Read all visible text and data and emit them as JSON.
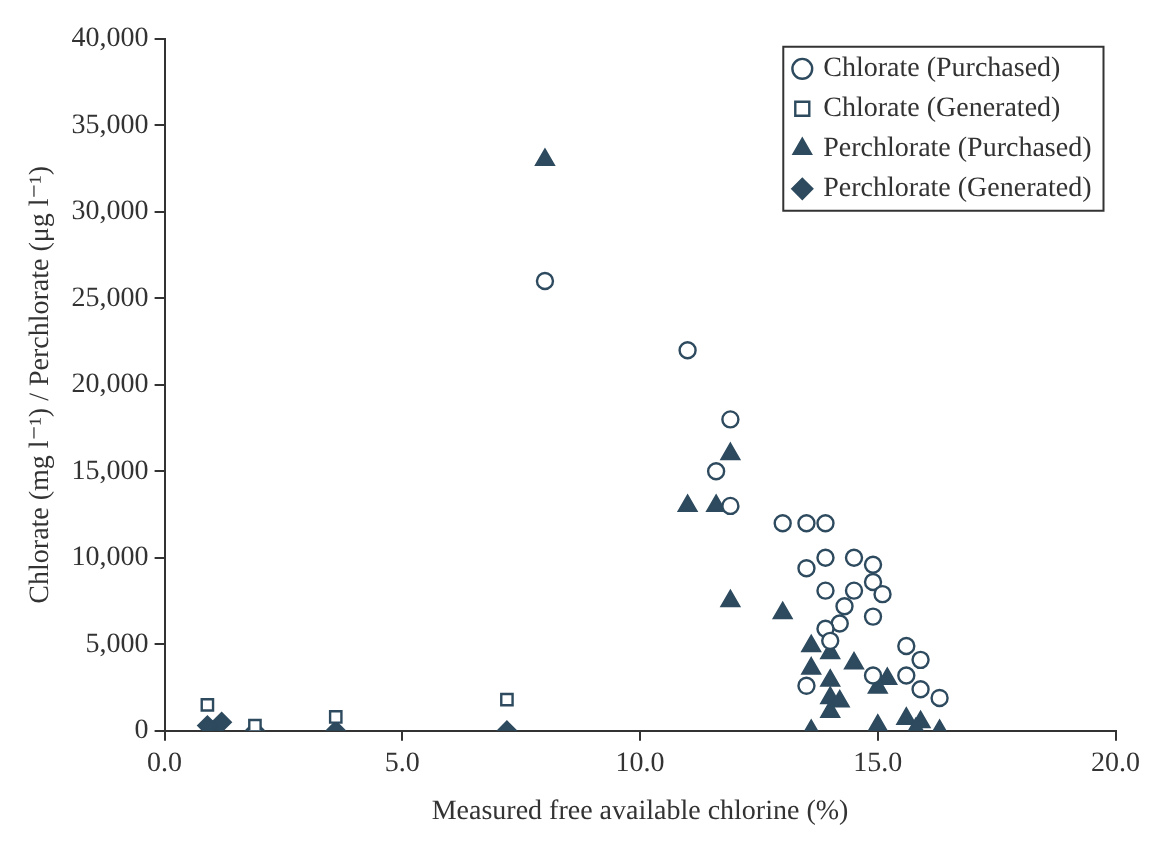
{
  "chart_data": {
    "type": "scatter",
    "xlabel": "Measured free available chlorine (%)",
    "ylabel": "Chlorate (mg l⁻¹) / Perchlorate (μg l⁻¹)",
    "xlim": [
      0,
      20
    ],
    "xticks": [
      {
        "value": 0,
        "label": "0.0"
      },
      {
        "value": 5,
        "label": "5.0"
      },
      {
        "value": 10,
        "label": "10.0"
      },
      {
        "value": 15,
        "label": "15.0"
      },
      {
        "value": 20,
        "label": "20.0"
      }
    ],
    "ylim": [
      0,
      40000
    ],
    "yticks": [
      0,
      {
        "value": 5000,
        "label": "5,000"
      },
      {
        "value": 10000,
        "label": "10,000"
      },
      {
        "value": 15000,
        "label": "15,000"
      },
      {
        "value": 20000,
        "label": "20,000"
      },
      {
        "value": 25000,
        "label": "25,000"
      },
      {
        "value": 30000,
        "label": "30,000"
      },
      {
        "value": 35000,
        "label": "35,000"
      },
      {
        "value": 40000,
        "label": "40,000"
      }
    ],
    "grid": false,
    "legend": "top right",
    "series": [
      {
        "name": "Chlorate (Purchased)",
        "color": "#2d4a5e",
        "marker": "circle",
        "x": [
          8.0,
          11.0,
          11.9,
          11.6,
          11.9,
          13.0,
          13.5,
          13.9,
          13.5,
          13.9,
          14.5,
          14.9,
          14.9,
          15.1,
          13.9,
          14.5,
          14.3,
          14.9,
          14.2,
          13.9,
          15.6,
          15.9,
          13.5,
          15.6,
          15.9,
          16.3,
          14.9,
          14.0
        ],
        "values": [
          26000,
          22000,
          18000,
          15000,
          13000,
          12000,
          12000,
          12000,
          9400,
          10000,
          10000,
          9600,
          8600,
          7900,
          8100,
          8100,
          7200,
          6600,
          6200,
          5900,
          4900,
          4100,
          2600,
          3200,
          2400,
          1900,
          3200,
          5200
        ]
      },
      {
        "name": "Chlorate (Generated)",
        "color": "#2d4a5e",
        "marker": "square",
        "x": [
          0.9,
          1.9,
          3.6,
          7.2
        ],
        "values": [
          1500,
          300,
          800,
          1800
        ]
      },
      {
        "name": "Perchlorate (Purchased)",
        "color": "#2d4a5e",
        "marker": "triangle",
        "x": [
          8.0,
          11.9,
          11.0,
          11.6,
          11.9,
          13.0,
          13.6,
          14.0,
          13.6,
          14.5,
          14.0,
          15.2,
          15.0,
          14.0,
          14.2,
          14.0,
          13.6,
          15.0,
          15.6,
          15.9,
          16.3,
          15.8
        ],
        "values": [
          33000,
          16000,
          13000,
          13000,
          7500,
          6800,
          4900,
          4500,
          3600,
          3900,
          2900,
          3000,
          2500,
          1900,
          1700,
          1100,
          0,
          300,
          700,
          500,
          0,
          100
        ]
      },
      {
        "name": "Perchlorate (Generated)",
        "color": "#2d4a5e",
        "marker": "diamond",
        "x": [
          1.0,
          1.2,
          0.9,
          1.9,
          3.6,
          7.2
        ],
        "values": [
          0,
          500,
          300,
          0,
          0,
          0
        ]
      }
    ]
  }
}
